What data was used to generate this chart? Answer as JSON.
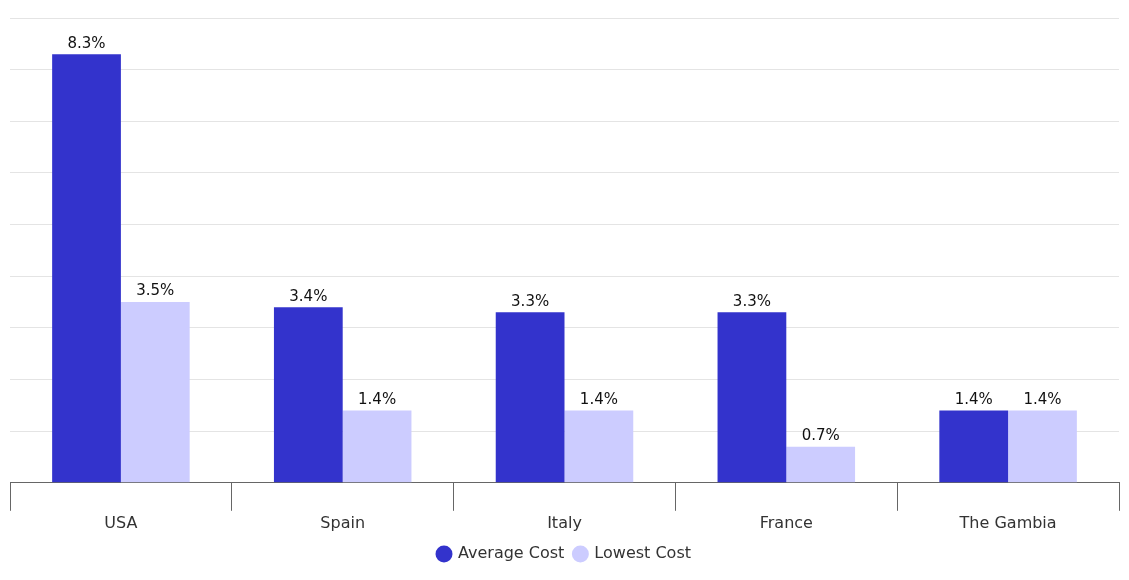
{
  "chart_data": {
    "type": "bar",
    "categories": [
      "USA",
      "Spain",
      "Italy",
      "France",
      "The Gambia"
    ],
    "series": [
      {
        "name": "Average Cost",
        "color": "#3333cc",
        "values": [
          8.3,
          3.4,
          3.3,
          3.3,
          1.4
        ],
        "value_labels": [
          "8.3%",
          "3.4%",
          "3.3%",
          "3.3%",
          "1.4%"
        ]
      },
      {
        "name": "Lowest Cost",
        "color": "#ccccff",
        "values": [
          3.5,
          1.4,
          1.4,
          0.7,
          1.4
        ],
        "value_labels": [
          "3.5%",
          "1.4%",
          "1.4%",
          "0.7%",
          "1.4%"
        ]
      }
    ],
    "ylim": [
      0,
      9
    ],
    "yticks": [
      {
        "value": 0,
        "label": null
      },
      {
        "value": 1,
        "label": null
      },
      {
        "value": 2,
        "label": null
      },
      {
        "value": 3,
        "label": null
      },
      {
        "value": 4,
        "label": null
      },
      {
        "value": 5,
        "label": null
      },
      {
        "value": 6,
        "label": null
      },
      {
        "value": 7,
        "label": null
      },
      {
        "value": 8,
        "label": null
      },
      {
        "value": 9,
        "label": null
      }
    ],
    "tick_labels": "x",
    "grid": "y",
    "legend": "bottom",
    "marker": "circle"
  }
}
